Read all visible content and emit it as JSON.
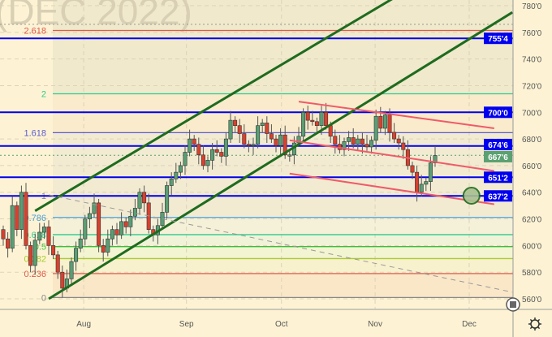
{
  "watermark": "(DEC 2022)",
  "chart_data": {
    "type": "candlestick",
    "ylim": [
      555,
      790
    ],
    "y_ticks": [
      "780'0",
      "760'0",
      "740'0",
      "720'0",
      "700'0",
      "680'0",
      "660'0",
      "640'0",
      "620'0",
      "600'0",
      "580'0",
      "560'0"
    ],
    "y_tick_values": [
      780,
      760,
      740,
      720,
      700,
      680,
      660,
      640,
      620,
      600,
      580,
      560
    ],
    "x_labels": [
      {
        "label": "Aug",
        "index": 17.7
      },
      {
        "label": "Sep",
        "index": 40.3
      },
      {
        "label": "Oct",
        "index": 61.2
      },
      {
        "label": "Nov",
        "index": 81.8
      },
      {
        "label": "Dec",
        "index": 102.5
      }
    ],
    "closes": [
      605,
      598,
      630,
      612,
      640,
      600,
      585,
      604,
      610,
      614,
      600,
      593,
      580,
      568,
      575,
      588,
      598,
      605,
      620,
      624,
      632,
      600,
      595,
      605,
      612,
      608,
      618,
      614,
      622,
      628,
      640,
      632,
      612,
      608,
      615,
      625,
      645,
      650,
      655,
      660,
      670,
      680,
      676,
      668,
      660,
      664,
      672,
      670,
      667,
      680,
      694,
      690,
      684,
      676,
      675,
      676,
      690,
      692,
      684,
      680,
      675,
      683,
      668,
      668,
      677,
      682,
      700,
      694,
      693,
      690,
      700,
      690,
      682,
      676,
      672,
      678,
      681,
      676,
      680,
      676,
      674,
      679,
      697,
      688,
      698,
      685,
      680,
      677,
      672,
      660,
      655,
      640,
      646,
      648,
      662,
      667.6
    ],
    "first_open": 612,
    "fib_levels": [
      {
        "label": "2.618",
        "value": 761.4,
        "color": "#e05a4a"
      },
      {
        "label": "2",
        "value": 713.9,
        "color": "#2ecc8f"
      },
      {
        "label": "1.618",
        "value": 684.7,
        "color": "#5a5ad0"
      },
      {
        "label": "1",
        "value": 637.4,
        "color": "#888888"
      },
      {
        "label": "0.786",
        "value": 621.1,
        "color": "#4aa0d8"
      },
      {
        "label": "0.618",
        "value": 608.2,
        "color": "#2ecc8f"
      },
      {
        "label": "0.5",
        "value": 599.2,
        "color": "#3cbf3c"
      },
      {
        "label": "0.382",
        "value": 590.2,
        "color": "#a8cc30"
      },
      {
        "label": "0.236",
        "value": 579.0,
        "color": "#e05a4a"
      },
      {
        "label": "0",
        "value": 561.0,
        "color": "#888888"
      }
    ],
    "horizontal_levels": [
      {
        "label": "755'4",
        "value": 755.5
      },
      {
        "label": "700'0",
        "value": 700.0
      },
      {
        "label": "674'6",
        "value": 674.75
      },
      {
        "label": "651'2",
        "value": 651.25
      },
      {
        "label": "637'2",
        "value": 637.25
      }
    ],
    "last_price": {
      "label": "667'6",
      "value": 667.75,
      "color": "#5aa070"
    },
    "trend_lines": [
      {
        "kind": "channel-upper",
        "color": "#1f6b1f",
        "from": [
          7,
          626
        ],
        "to": [
          88,
          790
        ]
      },
      {
        "kind": "channel-lower",
        "color": "#1f6b1f",
        "from": [
          10,
          560
        ],
        "to": [
          112,
          775
        ]
      },
      {
        "kind": "red-upper",
        "color": "#f05a6a",
        "from": [
          65,
          708
        ],
        "to": [
          108,
          688
        ]
      },
      {
        "kind": "red-middle",
        "color": "#f05a6a",
        "from": [
          63,
          679
        ],
        "to": [
          108,
          656
        ]
      },
      {
        "kind": "red-lower",
        "color": "#f05a6a",
        "from": [
          63,
          654
        ],
        "to": [
          108,
          631
        ]
      },
      {
        "kind": "dashed-gray",
        "color": "#999999",
        "from": [
          10,
          638
        ],
        "to": [
          112,
          565
        ]
      }
    ],
    "target_marker": {
      "index": 103,
      "value": 637.4
    },
    "colors": {
      "up": "#5a9e74",
      "down": "#d9402e",
      "level": "#0000ee"
    }
  }
}
